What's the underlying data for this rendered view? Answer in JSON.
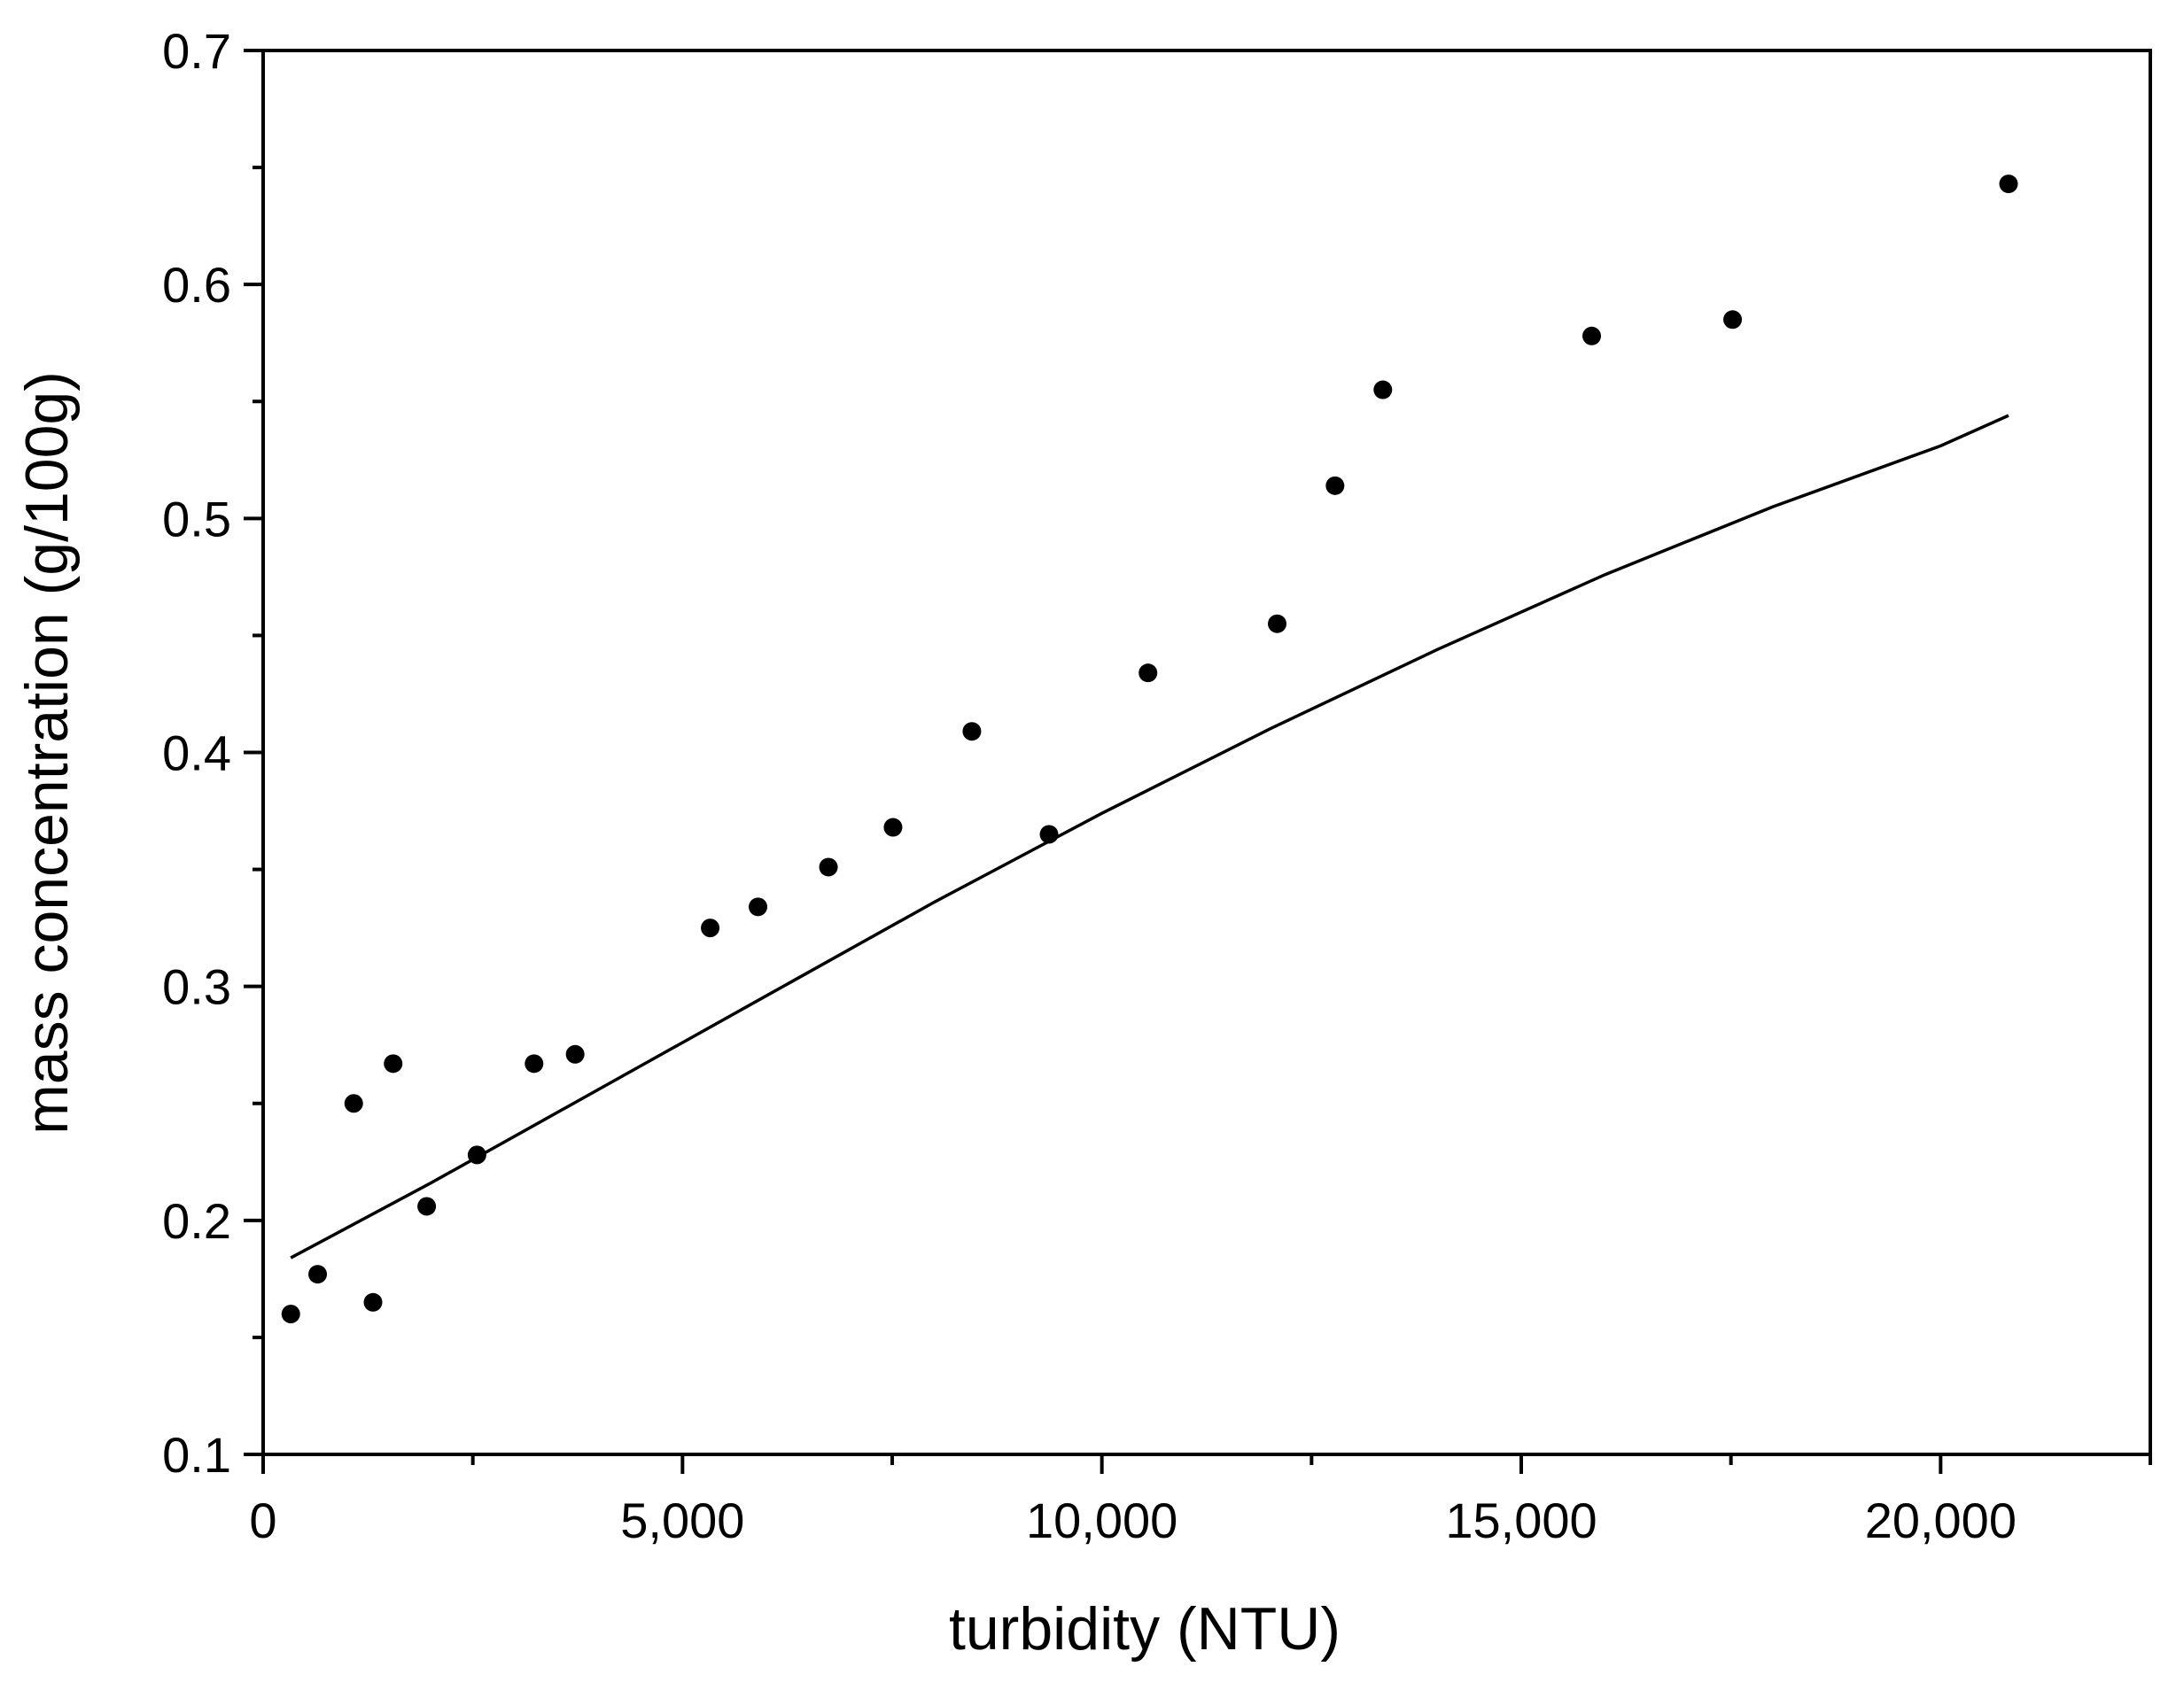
{
  "chart_data": {
    "type": "scatter",
    "title": "",
    "xlabel": "turbidity (NTU)",
    "ylabel": "mass concentration (g/100g)",
    "xlim": [
      0,
      22500
    ],
    "ylim": [
      0.1,
      0.7
    ],
    "x_ticks": [
      {
        "value": 0,
        "label": "0"
      },
      {
        "value": 5000,
        "label": "5,000"
      },
      {
        "value": 10000,
        "label": "10,000"
      },
      {
        "value": 15000,
        "label": "15,000"
      },
      {
        "value": 20000,
        "label": "20,000"
      }
    ],
    "x_minor_ticks": [
      2500,
      7500,
      12500,
      17500,
      22500
    ],
    "y_ticks": [
      {
        "value": 0.1,
        "label": "0.1"
      },
      {
        "value": 0.2,
        "label": "0.2"
      },
      {
        "value": 0.3,
        "label": "0.3"
      },
      {
        "value": 0.4,
        "label": "0.4"
      },
      {
        "value": 0.5,
        "label": "0.5"
      },
      {
        "value": 0.6,
        "label": "0.6"
      },
      {
        "value": 0.7,
        "label": "0.7"
      }
    ],
    "y_minor_ticks": [
      0.15,
      0.25,
      0.35,
      0.45,
      0.55,
      0.65
    ],
    "grid": false,
    "point_color": "#000000",
    "series": [
      {
        "type": "scatter",
        "points": [
          [
            330,
            0.16
          ],
          [
            650,
            0.177
          ],
          [
            1080,
            0.25
          ],
          [
            1310,
            0.165
          ],
          [
            1550,
            0.267
          ],
          [
            1950,
            0.206
          ],
          [
            2550,
            0.228
          ],
          [
            3230,
            0.267
          ],
          [
            3720,
            0.271
          ],
          [
            5330,
            0.325
          ],
          [
            5900,
            0.334
          ],
          [
            6740,
            0.351
          ],
          [
            7510,
            0.368
          ],
          [
            8450,
            0.409
          ],
          [
            9370,
            0.365
          ],
          [
            10550,
            0.434
          ],
          [
            12090,
            0.455
          ],
          [
            12780,
            0.514
          ],
          [
            13350,
            0.555
          ],
          [
            15840,
            0.578
          ],
          [
            17520,
            0.585
          ],
          [
            20810,
            0.643
          ]
        ]
      },
      {
        "type": "line",
        "x": [
          330,
          2000,
          4000,
          6000,
          8000,
          10000,
          12000,
          14000,
          16000,
          18000,
          20000,
          20810
        ],
        "y": [
          0.184,
          0.216,
          0.256,
          0.296,
          0.336,
          0.374,
          0.41,
          0.444,
          0.476,
          0.505,
          0.531,
          0.544
        ]
      }
    ]
  }
}
